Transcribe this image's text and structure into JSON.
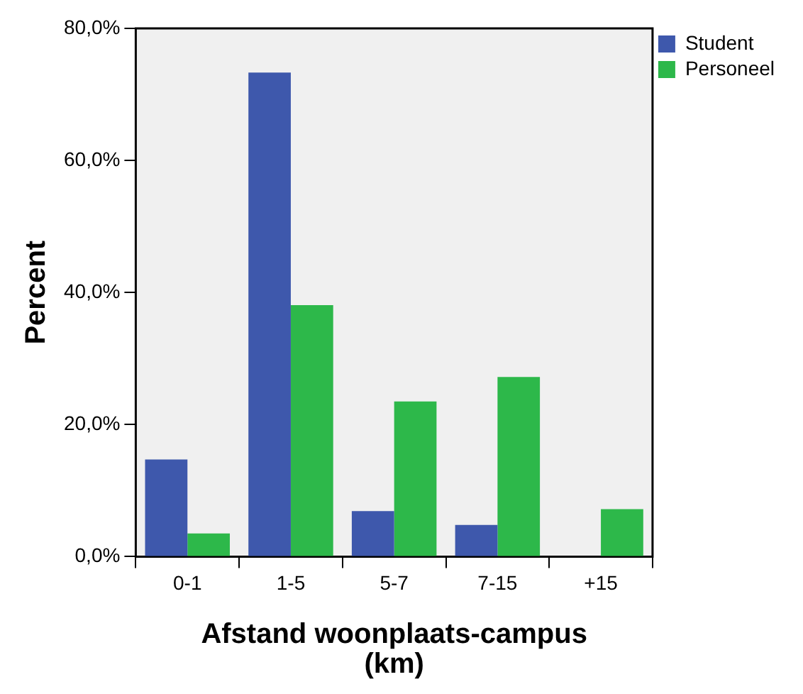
{
  "chart_data": {
    "type": "bar",
    "xlabel": "Afstand woonplaats-campus (km)",
    "ylabel": "Percent",
    "categories": [
      "0-1",
      "1-5",
      "5-7",
      "7-15",
      "+15"
    ],
    "series": [
      {
        "name": "Student",
        "color": "#3e58ac",
        "values": [
          14.7,
          73.3,
          6.9,
          4.8,
          0
        ]
      },
      {
        "name": "Personeel",
        "color": "#2db84a",
        "values": [
          3.5,
          38.1,
          23.5,
          27.2,
          7.2
        ]
      }
    ],
    "ylim": [
      0,
      80
    ],
    "yticks": [
      {
        "value": 0,
        "label": "0,0%"
      },
      {
        "value": 20,
        "label": "20,0%"
      },
      {
        "value": 40,
        "label": "40,0%"
      },
      {
        "value": 60,
        "label": "60,0%"
      },
      {
        "value": 80,
        "label": "80,0%"
      }
    ],
    "legend": "top right"
  }
}
